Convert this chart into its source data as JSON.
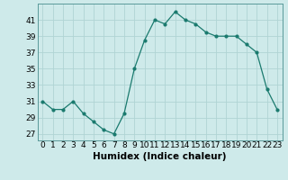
{
  "x": [
    0,
    1,
    2,
    3,
    4,
    5,
    6,
    7,
    8,
    9,
    10,
    11,
    12,
    13,
    14,
    15,
    16,
    17,
    18,
    19,
    20,
    21,
    22,
    23
  ],
  "y": [
    31,
    30,
    30,
    31,
    29.5,
    28.5,
    27.5,
    27,
    29.5,
    35,
    38.5,
    41,
    40.5,
    42,
    41,
    40.5,
    39.5,
    39,
    39,
    39,
    38,
    37,
    32.5,
    30
  ],
  "line_color": "#1a7a6e",
  "bg_color": "#ceeaea",
  "grid_color": "#b0d4d4",
  "xlabel": "Humidex (Indice chaleur)",
  "ylabel_ticks": [
    27,
    29,
    31,
    33,
    35,
    37,
    39,
    41
  ],
  "ylim": [
    26.2,
    43.0
  ],
  "xlim": [
    -0.5,
    23.5
  ],
  "tick_fontsize": 6.5,
  "xlabel_fontsize": 7.5
}
